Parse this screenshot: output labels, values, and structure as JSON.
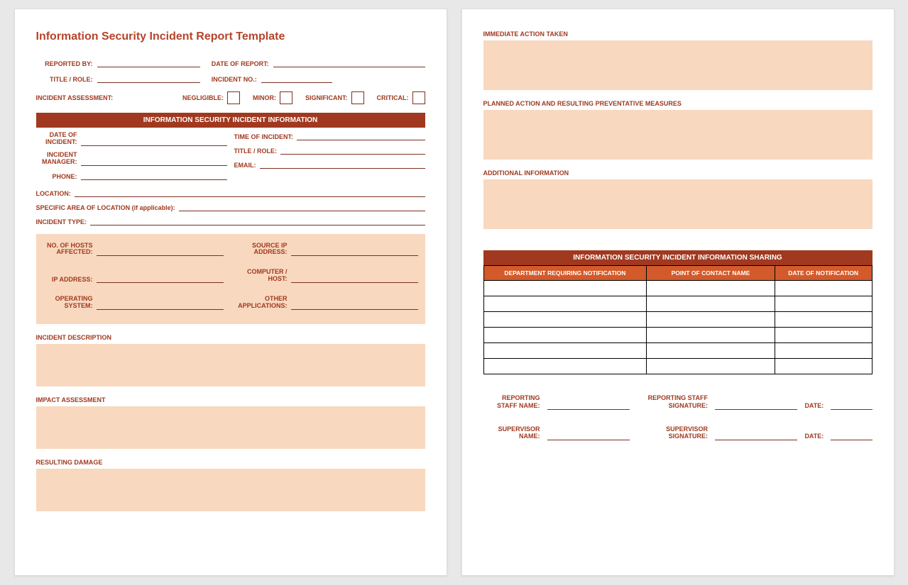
{
  "title": "Information Security Incident Report Template",
  "header_fields": {
    "reported_by": "REPORTED BY:",
    "date_of_report": "DATE OF REPORT:",
    "title_role": "TITLE / ROLE:",
    "incident_no": "INCIDENT NO.:"
  },
  "assessment": {
    "label": "INCIDENT ASSESSMENT:",
    "negligible": "NEGLIGIBLE:",
    "minor": "MINOR:",
    "significant": "SIGNIFICANT:",
    "critical": "CRITICAL:"
  },
  "band_info": "INFORMATION SECURITY INCIDENT INFORMATION",
  "info_fields": {
    "date_of_incident": "DATE OF\nINCIDENT:",
    "time_of_incident": "TIME OF INCIDENT:",
    "incident_manager": "INCIDENT\nMANAGER:",
    "title_role": "TITLE / ROLE:",
    "phone": "PHONE:",
    "email": "EMAIL:",
    "location": "LOCATION:",
    "specific_area": "SPECIFIC AREA OF LOCATION (if applicable):",
    "incident_type": "INCIDENT TYPE:"
  },
  "tech_fields": {
    "hosts": "NO. OF HOSTS\nAFFECTED:",
    "source_ip": "SOURCE IP\nADDRESS:",
    "ip_address": "IP ADDRESS:",
    "computer_host": "COMPUTER /\nHOST:",
    "os": "OPERATING\nSYSTEM:",
    "other_apps": "OTHER\nAPPLICATIONS:"
  },
  "sections": {
    "incident_description": "INCIDENT DESCRIPTION",
    "impact_assessment": "IMPACT ASSESSMENT",
    "resulting_damage": "RESULTING DAMAGE",
    "immediate_action": "IMMEDIATE ACTION TAKEN",
    "planned_action": "PLANNED ACTION AND RESULTING PREVENTATIVE MEASURES",
    "additional_info": "ADDITIONAL INFORMATION"
  },
  "sharing": {
    "band": "INFORMATION SECURITY INCIDENT INFORMATION SHARING",
    "col_department": "DEPARTMENT REQUIRING NOTIFICATION",
    "col_contact": "POINT OF CONTACT NAME",
    "col_date": "DATE OF NOTIFICATION",
    "rows": 6
  },
  "signatures": {
    "reporting_staff_name": "REPORTING\nSTAFF NAME:",
    "reporting_staff_sig": "REPORTING STAFF\nSIGNATURE:",
    "supervisor_name": "SUPERVISOR\nNAME:",
    "supervisor_sig": "SUPERVISOR\nSIGNATURE:",
    "date": "DATE:"
  },
  "colors": {
    "accent": "#a0391f",
    "accent_mid": "#d35a2a",
    "peach": "#f8d8bf",
    "page_bg": "#ffffff",
    "body_bg": "#e8e8e8"
  }
}
